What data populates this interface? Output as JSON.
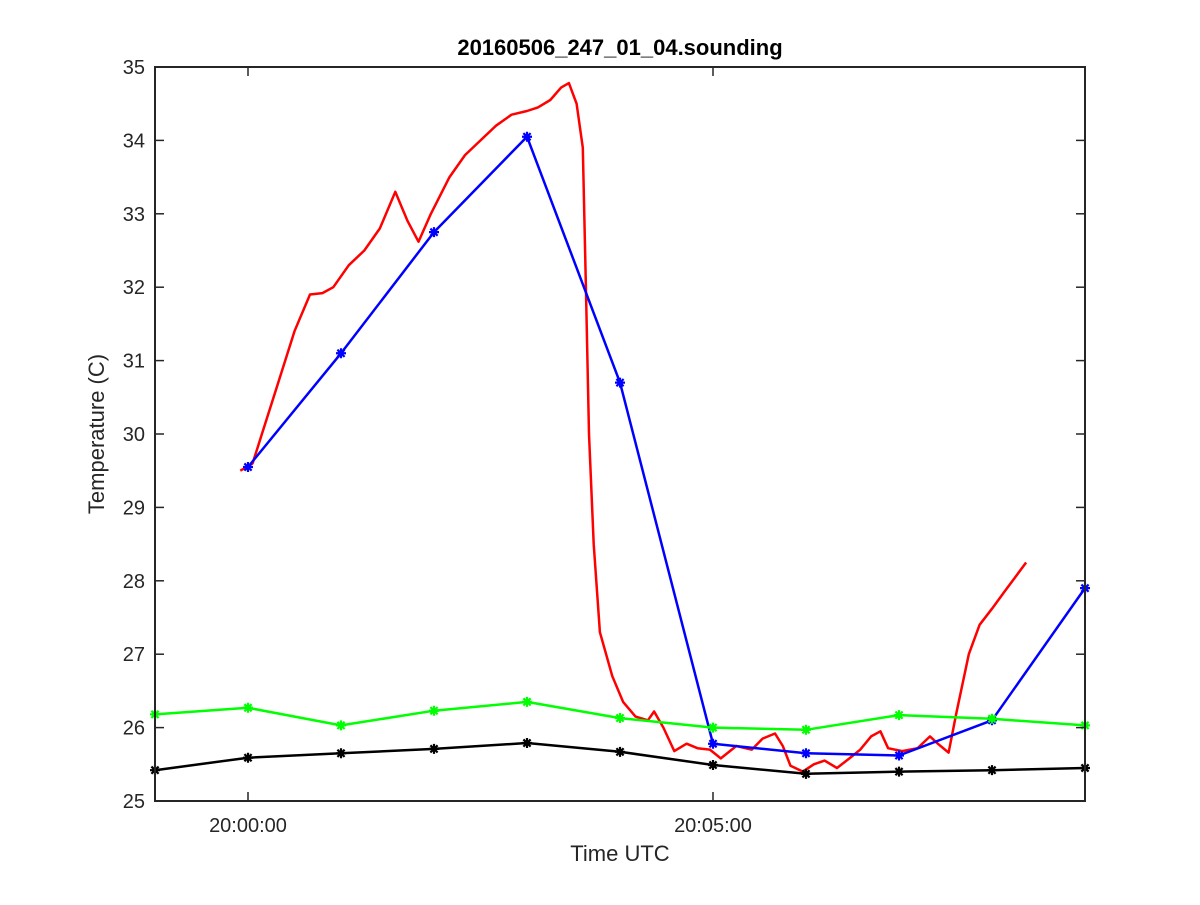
{
  "chart_data": {
    "type": "line",
    "title": "20160506_247_01_04.sounding",
    "xlabel": "Time UTC",
    "ylabel": "Temperature (C)",
    "xlim": [
      "19:59:00",
      "20:09:00"
    ],
    "ylim": [
      25,
      35
    ],
    "x_ticks": [
      {
        "time": "20:00:00",
        "label": "20:00:00"
      },
      {
        "time": "20:05:00",
        "label": "20:05:00"
      }
    ],
    "y_ticks": [
      "25",
      "26",
      "27",
      "28",
      "29",
      "30",
      "31",
      "32",
      "33",
      "34",
      "35"
    ],
    "grid": false,
    "legend": "none",
    "series": [
      {
        "color": "#ff0000",
        "marker": "none",
        "points": [
          [
            "19:59:55",
            29.5
          ],
          [
            "20:00:03",
            29.6
          ],
          [
            "20:00:09",
            30.0
          ],
          [
            "20:00:18",
            30.6
          ],
          [
            "20:00:30",
            31.4
          ],
          [
            "20:00:40",
            31.9
          ],
          [
            "20:00:48",
            31.92
          ],
          [
            "20:00:55",
            32.0
          ],
          [
            "20:01:05",
            32.3
          ],
          [
            "20:01:15",
            32.5
          ],
          [
            "20:01:25",
            32.8
          ],
          [
            "20:01:35",
            33.3
          ],
          [
            "20:01:43",
            32.9
          ],
          [
            "20:01:50",
            32.62
          ],
          [
            "20:01:58",
            33.0
          ],
          [
            "20:02:10",
            33.5
          ],
          [
            "20:02:20",
            33.8
          ],
          [
            "20:02:30",
            34.0
          ],
          [
            "20:02:40",
            34.2
          ],
          [
            "20:02:50",
            34.35
          ],
          [
            "20:03:00",
            34.4
          ],
          [
            "20:03:07",
            34.45
          ],
          [
            "20:03:15",
            34.55
          ],
          [
            "20:03:22",
            34.72
          ],
          [
            "20:03:27",
            34.78
          ],
          [
            "20:03:32",
            34.5
          ],
          [
            "20:03:36",
            33.9
          ],
          [
            "20:03:38",
            32.0
          ],
          [
            "20:03:40",
            30.0
          ],
          [
            "20:03:43",
            28.5
          ],
          [
            "20:03:47",
            27.3
          ],
          [
            "20:03:55",
            26.7
          ],
          [
            "20:04:02",
            26.35
          ],
          [
            "20:04:10",
            26.15
          ],
          [
            "20:04:18",
            26.1
          ],
          [
            "20:04:22",
            26.22
          ],
          [
            "20:04:28",
            26.0
          ],
          [
            "20:04:35",
            25.68
          ],
          [
            "20:04:43",
            25.78
          ],
          [
            "20:04:50",
            25.72
          ],
          [
            "20:04:58",
            25.7
          ],
          [
            "20:05:05",
            25.58
          ],
          [
            "20:05:15",
            25.75
          ],
          [
            "20:05:25",
            25.7
          ],
          [
            "20:05:32",
            25.85
          ],
          [
            "20:05:40",
            25.92
          ],
          [
            "20:05:45",
            25.75
          ],
          [
            "20:05:50",
            25.48
          ],
          [
            "20:05:58",
            25.4
          ],
          [
            "20:06:05",
            25.5
          ],
          [
            "20:06:12",
            25.55
          ],
          [
            "20:06:20",
            25.45
          ],
          [
            "20:06:28",
            25.58
          ],
          [
            "20:06:35",
            25.7
          ],
          [
            "20:06:42",
            25.88
          ],
          [
            "20:06:48",
            25.95
          ],
          [
            "20:06:53",
            25.72
          ],
          [
            "20:07:02",
            25.68
          ],
          [
            "20:07:12",
            25.72
          ],
          [
            "20:07:20",
            25.88
          ],
          [
            "20:07:25",
            25.78
          ],
          [
            "20:07:32",
            25.66
          ],
          [
            "20:07:37",
            26.2
          ],
          [
            "20:07:45",
            27.0
          ],
          [
            "20:07:52",
            27.4
          ],
          [
            "20:08:00",
            27.62
          ],
          [
            "20:08:08",
            27.85
          ],
          [
            "20:08:15",
            28.05
          ],
          [
            "20:08:22",
            28.25
          ]
        ]
      },
      {
        "color": "#0000ff",
        "marker": "asterisk",
        "points": [
          [
            "20:00:00",
            29.55
          ],
          [
            "20:01:00",
            31.1
          ],
          [
            "20:02:00",
            32.75
          ],
          [
            "20:03:00",
            34.05
          ],
          [
            "20:04:00",
            30.7
          ],
          [
            "20:05:00",
            25.78
          ],
          [
            "20:06:00",
            25.65
          ],
          [
            "20:07:00",
            25.62
          ],
          [
            "20:08:00",
            26.1
          ],
          [
            "20:09:00",
            27.9
          ]
        ]
      },
      {
        "color": "#00ff00",
        "marker": "asterisk",
        "points": [
          [
            "19:59:00",
            26.18
          ],
          [
            "20:00:00",
            26.27
          ],
          [
            "20:01:00",
            26.03
          ],
          [
            "20:02:00",
            26.23
          ],
          [
            "20:03:00",
            26.35
          ],
          [
            "20:04:00",
            26.13
          ],
          [
            "20:05:00",
            26.0
          ],
          [
            "20:06:00",
            25.97
          ],
          [
            "20:07:00",
            26.17
          ],
          [
            "20:08:00",
            26.12
          ],
          [
            "20:09:00",
            26.03
          ]
        ]
      },
      {
        "color": "#000000",
        "marker": "asterisk",
        "points": [
          [
            "19:59:00",
            25.42
          ],
          [
            "20:00:00",
            25.59
          ],
          [
            "20:01:00",
            25.65
          ],
          [
            "20:02:00",
            25.71
          ],
          [
            "20:03:00",
            25.79
          ],
          [
            "20:04:00",
            25.67
          ],
          [
            "20:05:00",
            25.49
          ],
          [
            "20:06:00",
            25.37
          ],
          [
            "20:07:00",
            25.4
          ],
          [
            "20:08:00",
            25.42
          ],
          [
            "20:09:00",
            25.45
          ]
        ]
      }
    ]
  }
}
